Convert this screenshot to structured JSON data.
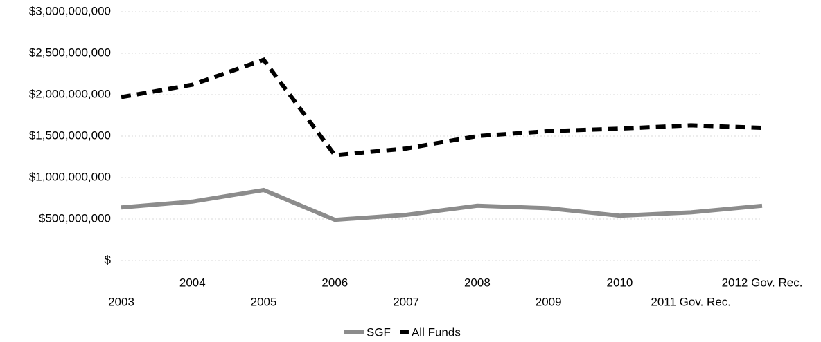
{
  "chart_data": {
    "type": "line",
    "categories": [
      "2003",
      "2004",
      "2005",
      "2006",
      "2007",
      "2008",
      "2009",
      "2010",
      "2011 Gov. Rec.",
      "2012 Gov. Rec."
    ],
    "series": [
      {
        "name": "SGF",
        "color": "#8c8c8c",
        "line_style": "solid",
        "values": [
          640000000,
          710000000,
          850000000,
          490000000,
          550000000,
          660000000,
          630000000,
          540000000,
          580000000,
          660000000
        ]
      },
      {
        "name": "All Funds",
        "color": "#000000",
        "line_style": "dashed",
        "values": [
          1970000000,
          2120000000,
          2420000000,
          1270000000,
          1350000000,
          1500000000,
          1560000000,
          1590000000,
          1630000000,
          1600000000
        ]
      }
    ],
    "ylim": [
      0,
      3000000000
    ],
    "yticks": [
      {
        "value": 0,
        "label": "$"
      },
      {
        "value": 500000000,
        "label": "$500,000,000"
      },
      {
        "value": 1000000000,
        "label": "$1,000,000,000"
      },
      {
        "value": 1500000000,
        "label": "$1,500,000,000"
      },
      {
        "value": 2000000000,
        "label": "$2,000,000,000"
      },
      {
        "value": 2500000000,
        "label": "$2,500,000,000"
      },
      {
        "value": 3000000000,
        "label": "$3,000,000,000"
      }
    ],
    "grid": true,
    "legend": "bottom"
  }
}
